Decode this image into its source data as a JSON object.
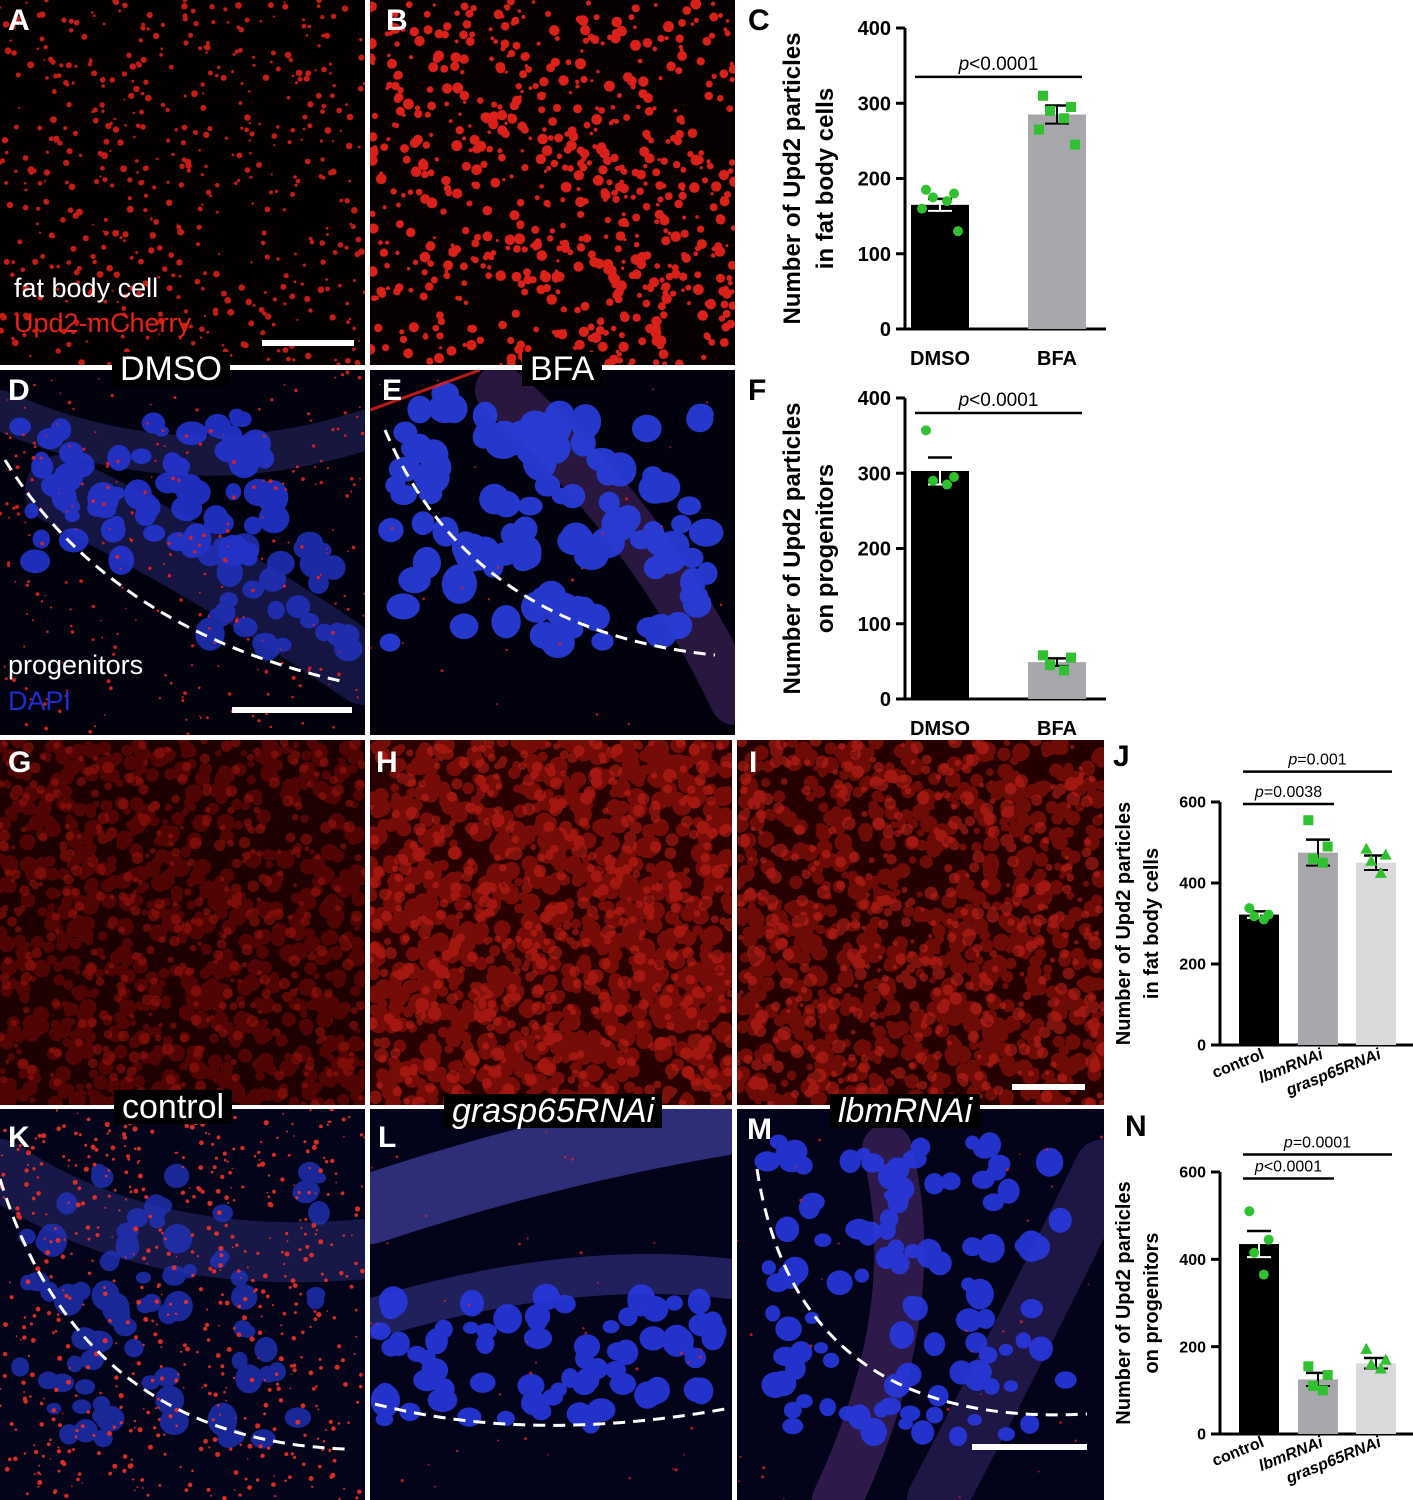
{
  "panels": {
    "A": "A",
    "B": "B",
    "C": "C",
    "D": "D",
    "E": "E",
    "F": "F",
    "G": "G",
    "H": "H",
    "I": "I",
    "J": "J",
    "K": "K",
    "L": "L",
    "M": "M",
    "N": "N"
  },
  "overlays": {
    "fat_body_cell": "fat body cell",
    "upd2_mcherry": "Upd2-mCherry",
    "progenitors": "progenitors",
    "dapi": "DAPI",
    "dmso": "DMSO",
    "bfa": "BFA",
    "control": "control",
    "grasp65rnai": "grasp65RNAi",
    "lbmrnai": "lbmRNAi"
  },
  "colors": {
    "red_signal": "#e8211a",
    "blue_signal": "#1a2fd0",
    "green_points": "#2fc12f",
    "bar_black": "#000000",
    "bar_grey": "#a6a6ab",
    "bar_light": "#d9d9db"
  },
  "chart_data": [
    {
      "id": "C",
      "type": "bar",
      "categories": [
        "DMSO",
        "BFA"
      ],
      "values": [
        165,
        285
      ],
      "errors": [
        8,
        12
      ],
      "points": [
        [
          185,
          180,
          175,
          170,
          160,
          130
        ],
        [
          310,
          295,
          290,
          280,
          265,
          245
        ]
      ],
      "markers": [
        "circle",
        "square"
      ],
      "bar_colors": [
        "#000000",
        "#a6a6ab"
      ],
      "ylabel_lines": [
        "Number of Upd2 particles",
        "in fat body cells"
      ],
      "ylim": [
        0,
        400
      ],
      "yticks": [
        "0",
        "100",
        "200",
        "300",
        "400"
      ],
      "comparisons": [
        {
          "from": 0,
          "to": 1,
          "p": "<0.0001",
          "level": 335
        }
      ]
    },
    {
      "id": "F",
      "type": "bar",
      "categories": [
        "DMSO",
        "BFA"
      ],
      "values": [
        303,
        49
      ],
      "errors": [
        18,
        5
      ],
      "points": [
        [
          357,
          295,
          290,
          285
        ],
        [
          58,
          55,
          45,
          38
        ]
      ],
      "markers": [
        "circle",
        "square"
      ],
      "bar_colors": [
        "#000000",
        "#a6a6ab"
      ],
      "ylabel_lines": [
        "Number of Upd2 particles",
        "on progenitors"
      ],
      "ylim": [
        0,
        400
      ],
      "yticks": [
        "0",
        "100",
        "200",
        "300",
        "400"
      ],
      "comparisons": [
        {
          "from": 0,
          "to": 1,
          "p": "<0.0001",
          "level": 380
        }
      ]
    },
    {
      "id": "J",
      "type": "bar",
      "categories": [
        "control",
        "lbmRNAi",
        "grasp65RNAi"
      ],
      "values": [
        322,
        475,
        450
      ],
      "errors": [
        8,
        32,
        18
      ],
      "points": [
        [
          338,
          322,
          318,
          310
        ],
        [
          555,
          490,
          460,
          450
        ],
        [
          485,
          470,
          455,
          425
        ]
      ],
      "markers": [
        "circle",
        "square",
        "triangle"
      ],
      "bar_colors": [
        "#000000",
        "#a6a6ab",
        "#d9d9db"
      ],
      "ylabel_lines": [
        "Number of Upd2 particles",
        "in fat body cells"
      ],
      "ylim": [
        0,
        600
      ],
      "yticks": [
        "0",
        "200",
        "400",
        "600"
      ],
      "comparisons": [
        {
          "from": 0,
          "to": 1,
          "p": "=0.0038",
          "level": 595
        },
        {
          "from": 0,
          "to": 2,
          "p": "=0.001",
          "level": 675
        }
      ]
    },
    {
      "id": "N",
      "type": "bar",
      "categories": [
        "control",
        "lbmRNAi",
        "grasp65RNAi"
      ],
      "values": [
        435,
        125,
        162
      ],
      "errors": [
        30,
        15,
        12
      ],
      "points": [
        [
          510,
          445,
          415,
          365
        ],
        [
          155,
          135,
          110,
          100
        ],
        [
          195,
          170,
          160,
          150
        ]
      ],
      "markers": [
        "circle",
        "square",
        "triangle"
      ],
      "bar_colors": [
        "#000000",
        "#a6a6ab",
        "#d9d9db"
      ],
      "ylabel_lines": [
        "Number of Upd2 particles",
        "on progenitors"
      ],
      "ylim": [
        0,
        600
      ],
      "yticks": [
        "0",
        "200",
        "400",
        "600"
      ],
      "comparisons": [
        {
          "from": 0,
          "to": 1,
          "p": "<0.0001",
          "level": 585
        },
        {
          "from": 0,
          "to": 2,
          "p": "=0.0001",
          "level": 640
        }
      ]
    }
  ]
}
